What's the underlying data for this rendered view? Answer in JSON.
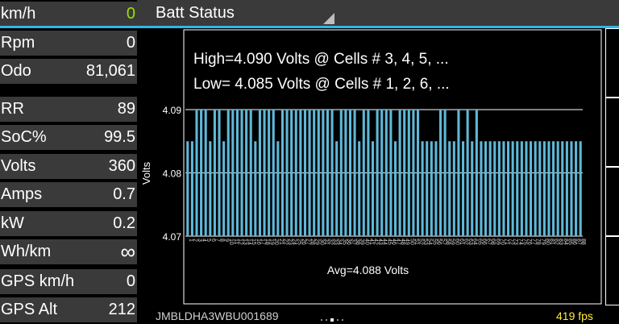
{
  "gauges": [
    {
      "label": "km/h",
      "value": "0",
      "value_color": "green"
    },
    {
      "label": "Rpm",
      "value": "0"
    },
    {
      "label": "Odo",
      "value": "81,061"
    },
    {
      "label": "RR",
      "value": "89"
    },
    {
      "label": "SoC%",
      "value": "99.5"
    },
    {
      "label": "Volts",
      "value": "360"
    },
    {
      "label": "Amps",
      "value": "0.7"
    },
    {
      "label": "kW",
      "value": "0.2"
    },
    {
      "label": "Wh/km",
      "value": "∞"
    },
    {
      "label": "GPS km/h",
      "value": "0"
    },
    {
      "label": "GPS Alt",
      "value": "212"
    }
  ],
  "header": {
    "title": "Batt Status"
  },
  "footer": {
    "vin": "JMBLDHA3WBU001689",
    "fps": "419 fps",
    "page_dots": 5,
    "active_dot": 2
  },
  "colors": {
    "accent": "#33b5e5",
    "panel": "#3a3a3a",
    "fps": "#ffeb3b",
    "green": "#9be000"
  },
  "chart_data": {
    "type": "bar",
    "ylabel": "Volts",
    "ylim": [
      4.07,
      4.09
    ],
    "yticks": [
      "4.07",
      "4.08",
      "4.09"
    ],
    "high_text": "High=4.090 Volts @ Cells # 3, 4, 5,  ...",
    "low_text": "Low= 4.085 Volts @ Cells # 1, 2, 6,  ...",
    "avg_text": "Avg=4.088 Volts",
    "categories": [
      "1",
      "2",
      "3",
      "4",
      "5",
      "6",
      "7",
      "8",
      "9",
      "10",
      "11",
      "12",
      "13",
      "14",
      "15",
      "16",
      "17",
      "18",
      "19",
      "20",
      "21",
      "22",
      "23",
      "24",
      "25",
      "26",
      "27",
      "28",
      "29",
      "30",
      "31",
      "32",
      "33",
      "34",
      "35",
      "36",
      "37",
      "38",
      "39",
      "40",
      "41",
      "42",
      "43",
      "44",
      "45",
      "46",
      "47",
      "48",
      "49",
      "50",
      "51",
      "52",
      "53",
      "54",
      "55",
      "56",
      "57",
      "58",
      "59",
      "60",
      "61",
      "62",
      "63",
      "64",
      "65",
      "66",
      "67",
      "68",
      "69",
      "70",
      "71",
      "72",
      "73",
      "74",
      "75",
      "76",
      "77",
      "78",
      "79",
      "80",
      "81",
      "82",
      "83",
      "84",
      "85",
      "86",
      "87",
      "88"
    ],
    "values": [
      4.085,
      4.085,
      4.09,
      4.09,
      4.09,
      4.085,
      4.09,
      4.09,
      4.085,
      4.09,
      4.09,
      4.09,
      4.09,
      4.09,
      4.09,
      4.085,
      4.09,
      4.09,
      4.09,
      4.09,
      4.085,
      4.09,
      4.09,
      4.09,
      4.09,
      4.09,
      4.09,
      4.09,
      4.09,
      4.09,
      4.09,
      4.09,
      4.09,
      4.085,
      4.09,
      4.09,
      4.09,
      4.09,
      4.085,
      4.09,
      4.09,
      4.085,
      4.09,
      4.09,
      4.09,
      4.09,
      4.085,
      4.09,
      4.09,
      4.09,
      4.09,
      4.09,
      4.085,
      4.085,
      4.085,
      4.085,
      4.09,
      4.09,
      4.085,
      4.085,
      4.09,
      4.085,
      4.09,
      4.085,
      4.09,
      4.085,
      4.085,
      4.085,
      4.085,
      4.085,
      4.085,
      4.085,
      4.085,
      4.085,
      4.085,
      4.085,
      4.085,
      4.085,
      4.085,
      4.085,
      4.085,
      4.085,
      4.085,
      4.085,
      4.085,
      4.085,
      4.085,
      4.085
    ]
  }
}
